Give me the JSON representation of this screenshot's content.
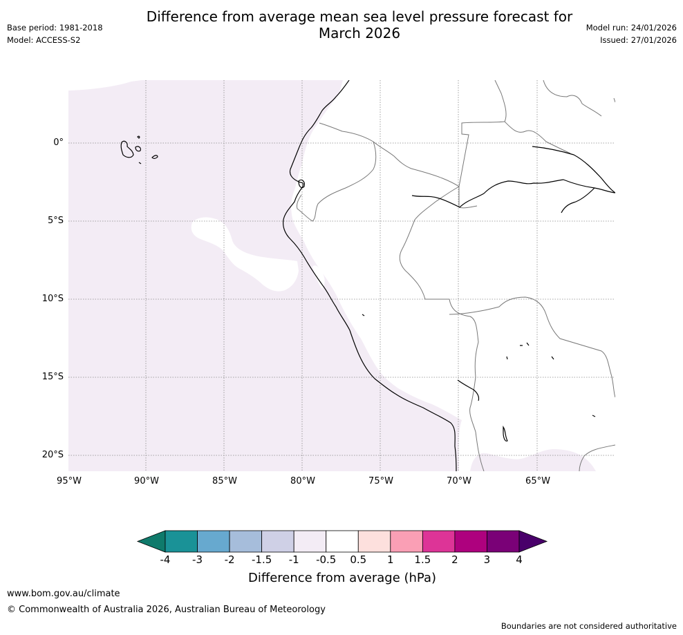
{
  "title_line1": "Difference from average mean sea level pressure forecast for",
  "title_line2": "March 2026",
  "meta_left": {
    "base_period": "Base period: 1981-2018",
    "model": "Model: ACCESS-S2"
  },
  "meta_right": {
    "model_run": "Model run: 24/01/2026",
    "issued": "Issued: 27/01/2026"
  },
  "map": {
    "latitude_labels": [
      "0°",
      "5°S",
      "10°S",
      "15°S",
      "20°S"
    ],
    "longitude_labels": [
      "95°W",
      "90°W",
      "85°W",
      "80°W",
      "75°W",
      "70°W",
      "65°W"
    ],
    "fill_colors": {
      "ocean_anomaly": "#f3ecf5",
      "neutral": "#ffffff"
    }
  },
  "colorbar": {
    "ticks": [
      "-4",
      "-3",
      "-2",
      "-1.5",
      "-1",
      "-0.5",
      "0.5",
      "1",
      "1.5",
      "2",
      "3",
      "4"
    ],
    "colors": [
      "#0f7a6b",
      "#1a9297",
      "#67a9cf",
      "#a6bddb",
      "#cfd0e6",
      "#f3ecf5",
      "#ffffff",
      "#fde0dd",
      "#fa9fb5",
      "#dd3497",
      "#ae017e",
      "#7a0177",
      "#49006a"
    ],
    "label": "Difference from average (hPa)"
  },
  "footer": {
    "url": "www.bom.gov.au/climate",
    "copyright": "© Commonwealth of Australia 2026, Australian Bureau of Meteorology",
    "disclaimer": "Boundaries are not considered authoritative"
  }
}
